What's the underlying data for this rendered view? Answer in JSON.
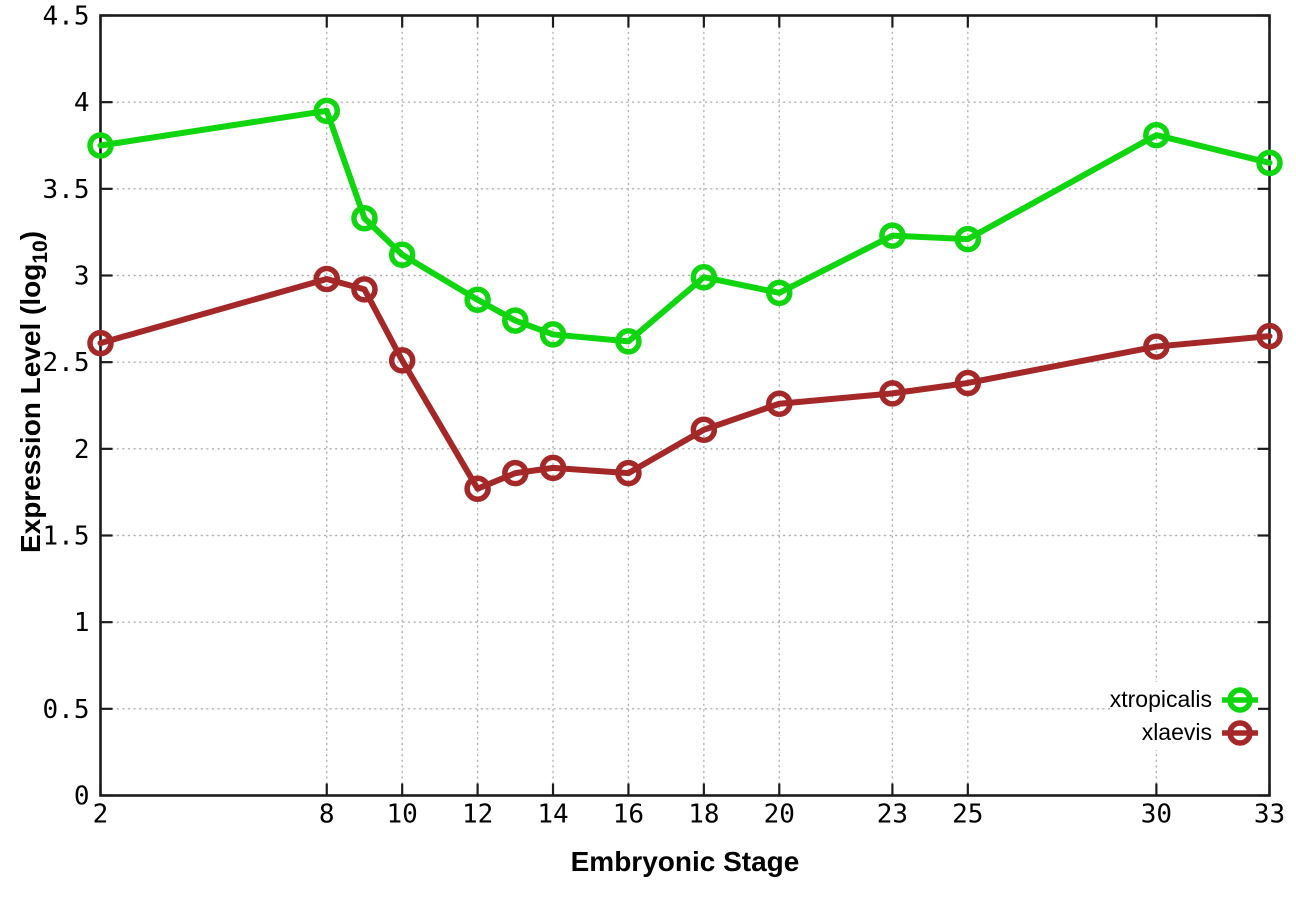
{
  "chart_data": {
    "type": "line",
    "title": "",
    "xlabel": "Embryonic Stage",
    "ylabel": "Expression Level (log10)",
    "ylabel_parts": {
      "prefix": "Expression Level (log",
      "sub": "10",
      "suffix": ")"
    },
    "x": [
      2,
      8,
      9,
      10,
      12,
      13,
      14,
      16,
      18,
      20,
      23,
      25,
      30,
      33
    ],
    "series": [
      {
        "name": "xtropicalis",
        "color": "#0fd60f",
        "marker": "open-circle",
        "values": [
          3.75,
          3.95,
          3.33,
          3.12,
          2.86,
          2.74,
          2.66,
          2.62,
          2.99,
          2.9,
          3.23,
          3.21,
          3.81,
          3.65
        ]
      },
      {
        "name": "xlaevis",
        "color": "#a52828",
        "marker": "open-circle",
        "values": [
          2.61,
          2.98,
          2.92,
          2.51,
          1.77,
          1.86,
          1.89,
          1.86,
          2.11,
          2.26,
          2.32,
          2.38,
          2.59,
          2.65
        ]
      }
    ],
    "xlim": [
      2,
      33
    ],
    "ylim": [
      0,
      4.5
    ],
    "xticks": [
      2,
      8,
      10,
      12,
      14,
      16,
      18,
      20,
      23,
      25,
      30,
      33
    ],
    "yticks": [
      0,
      0.5,
      1,
      1.5,
      2,
      2.5,
      3,
      3.5,
      4,
      4.5
    ],
    "grid": true,
    "grid_style": "dotted",
    "legend_position": "inside-bottom-right"
  },
  "colors": {
    "background": "#ffffff",
    "axis": "#1c1c1c",
    "grid": "#b0b0b0",
    "text": "#000000",
    "xtropicalis": "#0fd60f",
    "xlaevis": "#a52828"
  }
}
